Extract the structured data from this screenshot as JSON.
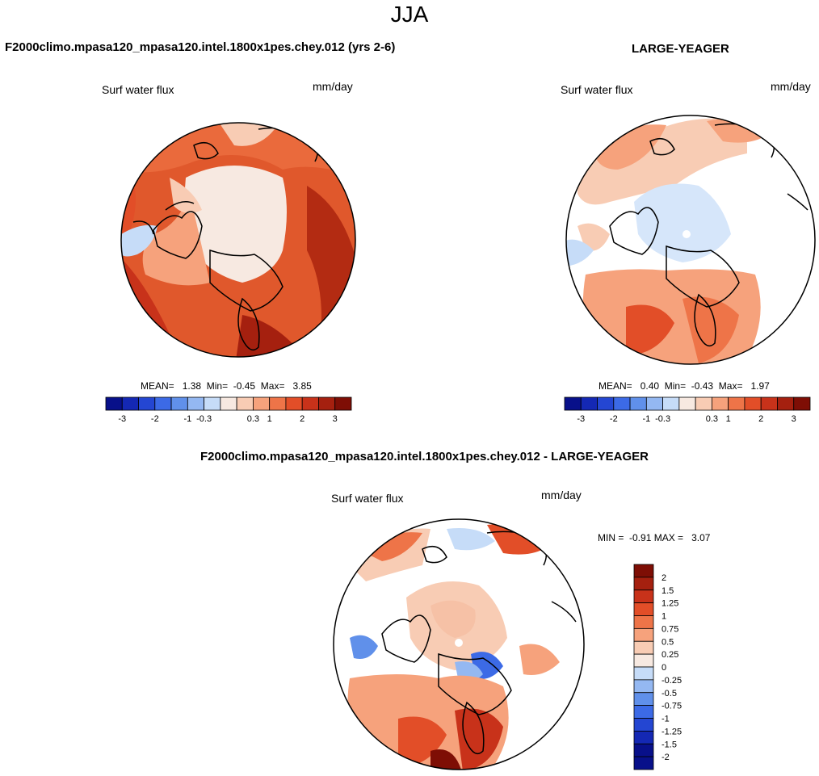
{
  "main_title": "JJA",
  "colors": {
    "scale": [
      "#08108a",
      "#1428b4",
      "#2446d2",
      "#3c6ae6",
      "#6090ea",
      "#94b8f2",
      "#c6dcf8",
      "#f7e9e1",
      "#f8ccb4",
      "#f6a27c",
      "#ee7448",
      "#e24e28",
      "#c8321a",
      "#a5200f",
      "#7e0e05"
    ],
    "diff_scale": [
      "#08108a",
      "#1428b4",
      "#2446d2",
      "#3c6ae6",
      "#6090ea",
      "#94b8f2",
      "#c6dcf8",
      "#f7e9e1",
      "#f8ccb4",
      "#f6a27c",
      "#ee7448",
      "#e24e28",
      "#c8321a",
      "#a5200f",
      "#7e0e05"
    ]
  },
  "panel_left": {
    "title": "F2000climo.mpasa120_mpasa120.intel.1800x1pes.chey.012 (yrs 2-6)",
    "variable": "Surf water flux",
    "units": "mm/day",
    "stats": {
      "mean_label": "MEAN=",
      "mean": "1.38",
      "min_label": "Min=",
      "min": "-0.45",
      "max_label": "Max=",
      "max": "3.85"
    },
    "colorbar_ticks": [
      "-3",
      "-2",
      "-1",
      "-0.3",
      "0.3",
      "1",
      "2",
      "3"
    ]
  },
  "panel_right": {
    "title": "LARGE-YEAGER",
    "variable": "Surf water flux",
    "units": "mm/day",
    "stats": {
      "mean_label": "MEAN=",
      "mean": "0.40",
      "min_label": "Min=",
      "min": "-0.43",
      "max_label": "Max=",
      "max": "1.97"
    },
    "colorbar_ticks": [
      "-3",
      "-2",
      "-1",
      "-0.3",
      "0.3",
      "1",
      "2",
      "3"
    ]
  },
  "panel_diff": {
    "title": "F2000climo.mpasa120_mpasa120.intel.1800x1pes.chey.012 - LARGE-YEAGER",
    "variable": "Surf water flux",
    "units": "mm/day",
    "minmax": {
      "min_label": "MIN =",
      "min": "-0.91",
      "max_label": "MAX =",
      "max": "3.07"
    },
    "colorbar_labels": [
      "2",
      "1.5",
      "1.25",
      "1",
      "0.75",
      "0.5",
      "0.25",
      "0",
      "-0.25",
      "-0.5",
      "-0.75",
      "-1",
      "-1.25",
      "-1.5",
      "-2"
    ]
  }
}
